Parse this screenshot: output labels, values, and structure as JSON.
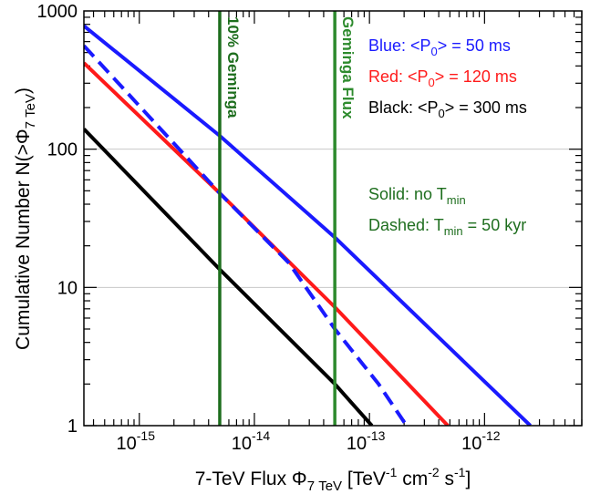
{
  "chart_data": {
    "type": "line",
    "xscale": "log",
    "yscale": "log",
    "xlim": [
      3.3e-16,
      7e-12
    ],
    "ylim": [
      1,
      1000
    ],
    "grid": "horizontal at y major ticks",
    "xlabel": {
      "prefix": "7-TeV Flux Φ",
      "sub": "7 TeV",
      "unit_open": " [TeV",
      "exp1": "-1",
      "cm": " cm",
      "exp2": "-2",
      "s": " s",
      "exp3": "-1",
      "close": "]"
    },
    "ylabel": {
      "prefix": "Cumulative Number N(>Φ",
      "sub": "7 TeV",
      "suffix": ")"
    },
    "x_ticks": [
      {
        "value": 1e-15,
        "base": "10",
        "exp": "-15"
      },
      {
        "value": 1e-14,
        "base": "10",
        "exp": "-14"
      },
      {
        "value": 1e-13,
        "base": "10",
        "exp": "-13"
      },
      {
        "value": 1e-12,
        "base": "10",
        "exp": "-12"
      }
    ],
    "y_ticks": [
      {
        "value": 1,
        "label": "1"
      },
      {
        "value": 10,
        "label": "10"
      },
      {
        "value": 100,
        "label": "100"
      },
      {
        "value": 1000,
        "label": "1000"
      }
    ],
    "series": [
      {
        "name": "Blue, Solid",
        "color": "#1a1aff",
        "dash": "solid",
        "points": [
          [
            3.3e-16,
            780
          ],
          [
            5e-15,
            125
          ],
          [
            5e-14,
            23
          ],
          [
            2.5e-12,
            1
          ]
        ]
      },
      {
        "name": "Red, Solid",
        "color": "#ff1a1a",
        "dash": "solid",
        "points": [
          [
            3.3e-16,
            420
          ],
          [
            5e-15,
            48
          ],
          [
            5e-14,
            7.2
          ],
          [
            4.8e-13,
            1
          ]
        ]
      },
      {
        "name": "Blue, Dashed",
        "color": "#1a1aff",
        "dash": "dashed",
        "points": [
          [
            3.3e-16,
            560
          ],
          [
            5e-15,
            48
          ],
          [
            2e-14,
            15
          ],
          [
            5e-14,
            5
          ],
          [
            1.2e-13,
            2
          ],
          [
            2.1e-13,
            1
          ]
        ]
      },
      {
        "name": "Black, Solid",
        "color": "#000000",
        "dash": "solid",
        "points": [
          [
            3.3e-16,
            140
          ],
          [
            5e-15,
            13.5
          ],
          [
            5e-14,
            2
          ],
          [
            1.05e-13,
            1
          ]
        ]
      }
    ],
    "vlines": [
      {
        "label": "10% Geminga",
        "x": 5e-15,
        "color": "#1e6e1e"
      },
      {
        "label": "Geminga Flux",
        "x": 5e-14,
        "color": "#2e8b2e"
      }
    ],
    "legend_placement": "top-right",
    "legend": [
      {
        "pre": "Blue: <P",
        "sub": "0",
        "post": "> = 50 ms",
        "color": "#1a1aff"
      },
      {
        "pre": "Red: <P",
        "sub": "0",
        "post": "> = 120 ms",
        "color": "#ff1a1a"
      },
      {
        "pre": "Black: <P",
        "sub": "0",
        "post": "> = 300 ms",
        "color": "#000000"
      }
    ],
    "annotations": [
      {
        "pre": "Solid: no T",
        "sub": "min",
        "post": "",
        "color": "#1e6e1e"
      },
      {
        "pre": "Dashed: T",
        "sub": "min",
        "post": " = 50 kyr",
        "color": "#1e6e1e"
      }
    ]
  }
}
